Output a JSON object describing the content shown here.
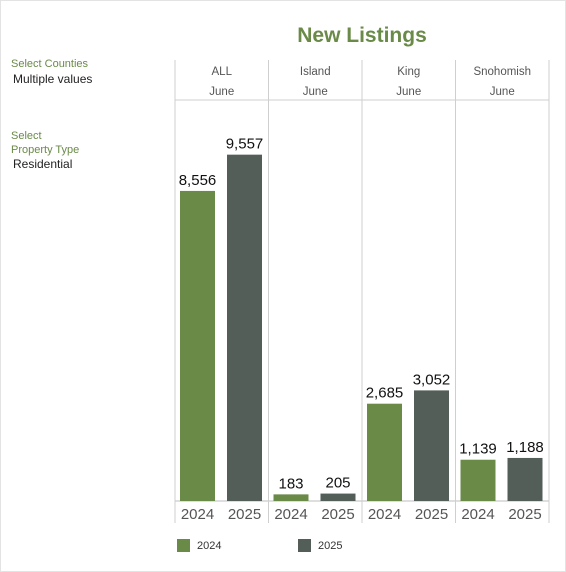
{
  "title": "New Listings",
  "filters": {
    "counties_label": "Select Counties",
    "counties_value": "Multiple values",
    "type_label_line1": "Select",
    "type_label_line2": "Property Type",
    "type_value": "Residential"
  },
  "colors": {
    "2024": "#6a8a48",
    "2025": "#535e58",
    "accent": "#6a8a48",
    "grid": "#cfcfcf"
  },
  "legend": [
    {
      "label": "2024",
      "color": "#6a8a48"
    },
    {
      "label": "2025",
      "color": "#535e58"
    }
  ],
  "chart_data": {
    "type": "bar",
    "title": "New Listings",
    "panels": [
      {
        "county": "ALL",
        "month": "June",
        "categories": [
          "2024",
          "2025"
        ],
        "values": [
          8556,
          9557
        ],
        "labels": [
          "8,556",
          "9,557"
        ]
      },
      {
        "county": "Island",
        "month": "June",
        "categories": [
          "2024",
          "2025"
        ],
        "values": [
          183,
          205
        ],
        "labels": [
          "183",
          "205"
        ]
      },
      {
        "county": "King",
        "month": "June",
        "categories": [
          "2024",
          "2025"
        ],
        "values": [
          2685,
          3052
        ],
        "labels": [
          "2,685",
          "3,052"
        ]
      },
      {
        "county": "Snohomish",
        "month": "June",
        "categories": [
          "2024",
          "2025"
        ],
        "values": [
          1139,
          1188
        ],
        "labels": [
          "1,139",
          "1,188"
        ]
      }
    ],
    "series": [
      {
        "name": "2024"
      },
      {
        "name": "2025"
      }
    ],
    "ylim": [
      0,
      10000
    ],
    "legend_position": "bottom",
    "grid": false
  }
}
